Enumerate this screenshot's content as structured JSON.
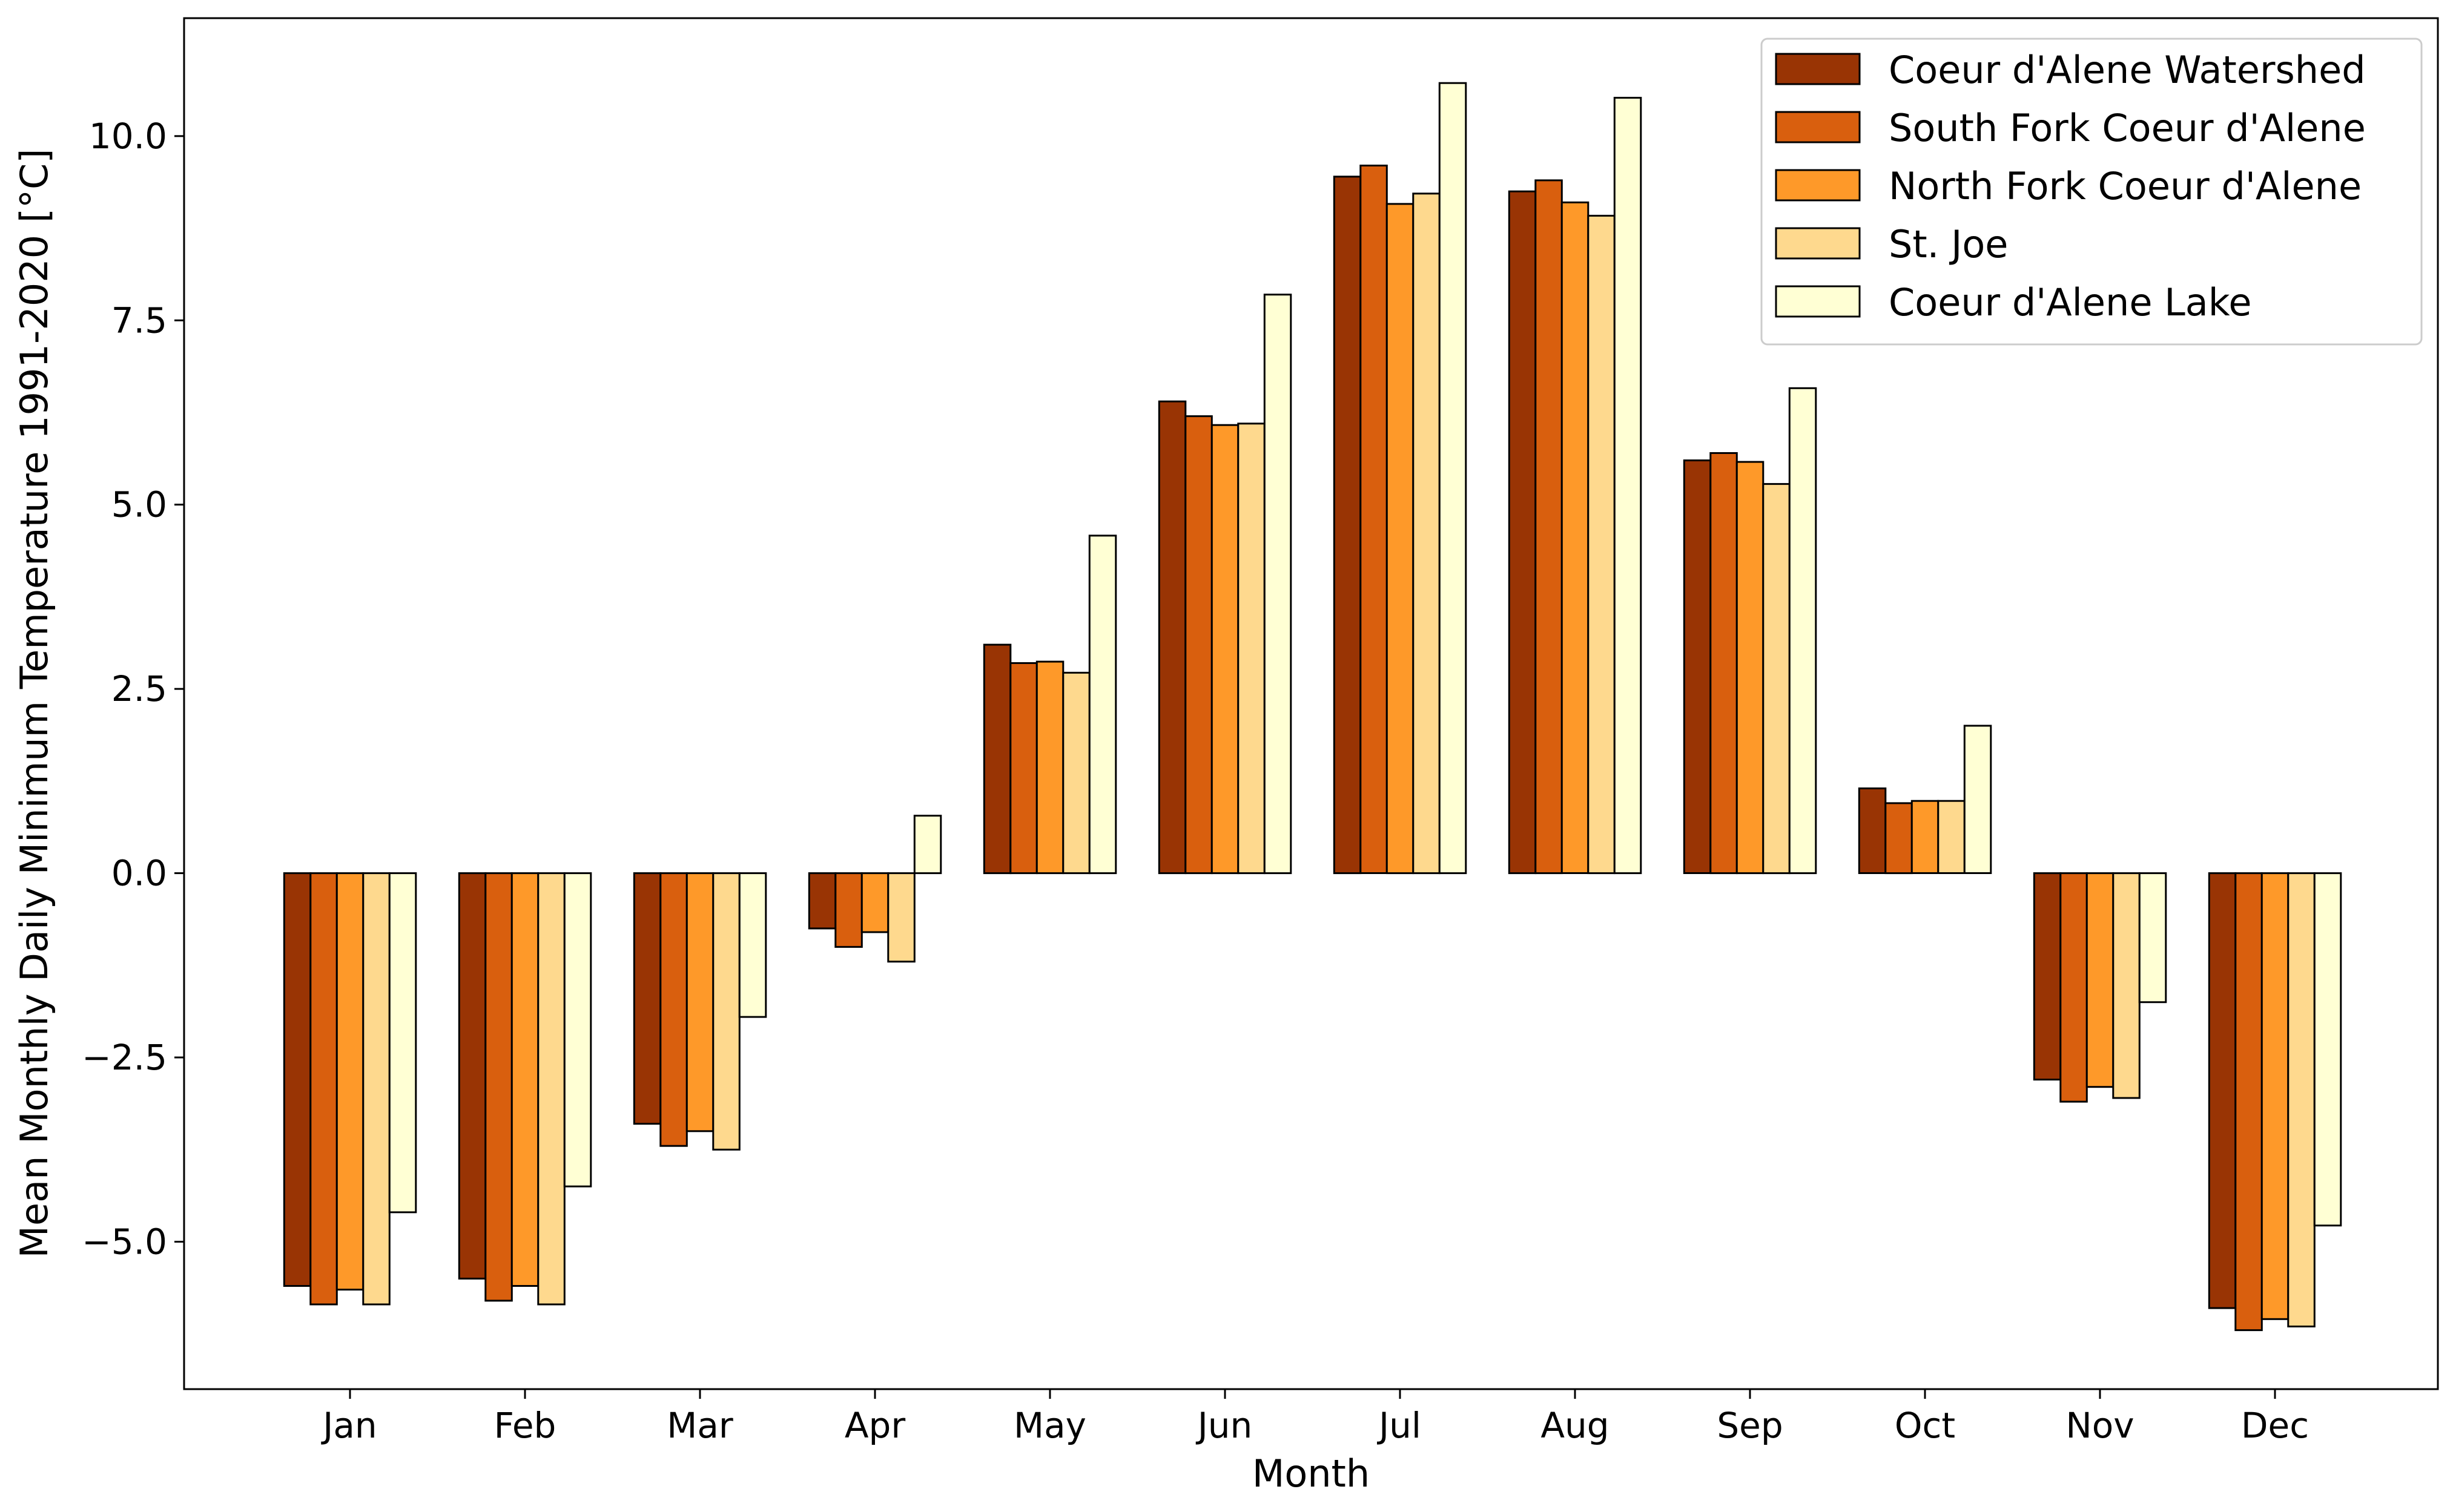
{
  "chart_data": {
    "type": "bar",
    "title": "",
    "xlabel": "Month",
    "ylabel": "Mean Monthly Daily Minimum Temperature 1991-2020 [°C]",
    "ylim": [
      -7.0,
      11.6
    ],
    "yticks": [
      -5.0,
      -2.5,
      0.0,
      2.5,
      5.0,
      7.5,
      10.0
    ],
    "ytick_labels": [
      "−5.0",
      "−2.5",
      "0.0",
      "2.5",
      "5.0",
      "7.5",
      "10.0"
    ],
    "categories": [
      "Jan",
      "Feb",
      "Mar",
      "Apr",
      "May",
      "Jun",
      "Jul",
      "Aug",
      "Sep",
      "Oct",
      "Nov",
      "Dec"
    ],
    "grid": false,
    "legend_position": "top-right",
    "series": [
      {
        "name": "Coeur d'Alene Watershed",
        "color": "#993404",
        "values": [
          -5.6,
          -5.5,
          -3.4,
          -0.75,
          3.1,
          6.4,
          9.45,
          9.25,
          5.6,
          1.15,
          -2.8,
          -5.9
        ]
      },
      {
        "name": "South Fork Coeur d'Alene",
        "color": "#d95f0e",
        "values": [
          -5.85,
          -5.8,
          -3.7,
          -1.0,
          2.85,
          6.2,
          9.6,
          9.4,
          5.7,
          0.95,
          -3.1,
          -6.2
        ]
      },
      {
        "name": "North Fork Coeur d'Alene",
        "color": "#fe9929",
        "values": [
          -5.65,
          -5.6,
          -3.5,
          -0.8,
          2.87,
          6.08,
          9.08,
          9.1,
          5.58,
          0.98,
          -2.9,
          -6.05
        ]
      },
      {
        "name": "St. Joe",
        "color": "#fed98e",
        "values": [
          -5.85,
          -5.85,
          -3.75,
          -1.2,
          2.72,
          6.1,
          9.22,
          8.92,
          5.28,
          0.98,
          -3.05,
          -6.15
        ]
      },
      {
        "name": "Coeur d'Alene Lake",
        "color": "#ffffd4",
        "values": [
          -4.6,
          -4.25,
          -1.95,
          0.78,
          4.58,
          7.85,
          10.72,
          10.52,
          6.58,
          2.0,
          -1.75,
          -4.78
        ]
      }
    ]
  }
}
